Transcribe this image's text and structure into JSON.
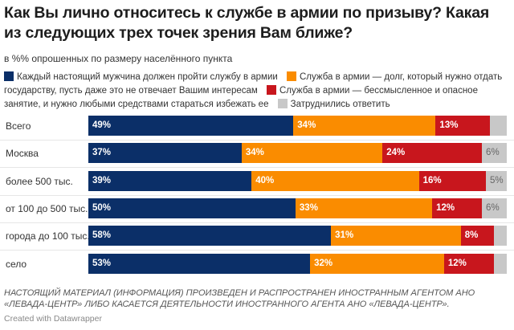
{
  "chart_data": {
    "type": "bar",
    "orientation": "horizontal-stacked",
    "title": "Как Вы лично относитесь к службе в армии по призыву? Какая из следующих трех точек зрения Вам ближе?",
    "subtitle": "в %% опрошенных по размеру населённого пункта",
    "categories": [
      "Всего",
      "Москва",
      "более 500 тыс.",
      "от 100 до 500 тыс.",
      "города до 100 тыс.",
      "село"
    ],
    "series": [
      {
        "name": "Каждый настоящий мужчина должен пройти службу в армии",
        "color": "#0b2f68",
        "values": [
          49,
          37,
          39,
          50,
          58,
          53
        ],
        "labels": [
          "49%",
          "37%",
          "39%",
          "50%",
          "58%",
          "53%"
        ]
      },
      {
        "name": "Служба в армии — долг, который нужно отдать государству, пусть даже это не отвечает Вашим интересам",
        "color": "#fa8c00",
        "values": [
          34,
          34,
          40,
          33,
          31,
          32
        ],
        "labels": [
          "34%",
          "34%",
          "40%",
          "33%",
          "31%",
          "32%"
        ]
      },
      {
        "name": "Служба в армии — бессмысленное и опасное занятие, и нужно любыми средствами стараться избежать ее",
        "color": "#c8161d",
        "values": [
          13,
          24,
          16,
          12,
          8,
          12
        ],
        "labels": [
          "13%",
          "24%",
          "16%",
          "12%",
          "8%",
          "12%"
        ]
      },
      {
        "name": "Затруднились ответить",
        "color": "#c8c8c8",
        "values": [
          4,
          6,
          5,
          6,
          3,
          3
        ],
        "labels": [
          "",
          "6%",
          "5%",
          "6%",
          "",
          ""
        ]
      }
    ],
    "xlim": [
      0,
      100
    ],
    "legend": "top",
    "grid": false
  },
  "note": "НАСТОЯЩИЙ МАТЕРИАЛ (ИНФОРМАЦИЯ) ПРОИЗВЕДЕН И РАСПРОСТРАНЕН ИНОСТРАННЫМ АГЕНТОМ АНО «ЛЕВАДА-ЦЕНТР» ЛИБО КАСАЕТСЯ ДЕЯТЕЛЬНОСТИ ИНОСТРАННОГО АГЕНТА АНО «ЛЕВАДА-ЦЕНТР».",
  "credit": "Created with Datawrapper"
}
